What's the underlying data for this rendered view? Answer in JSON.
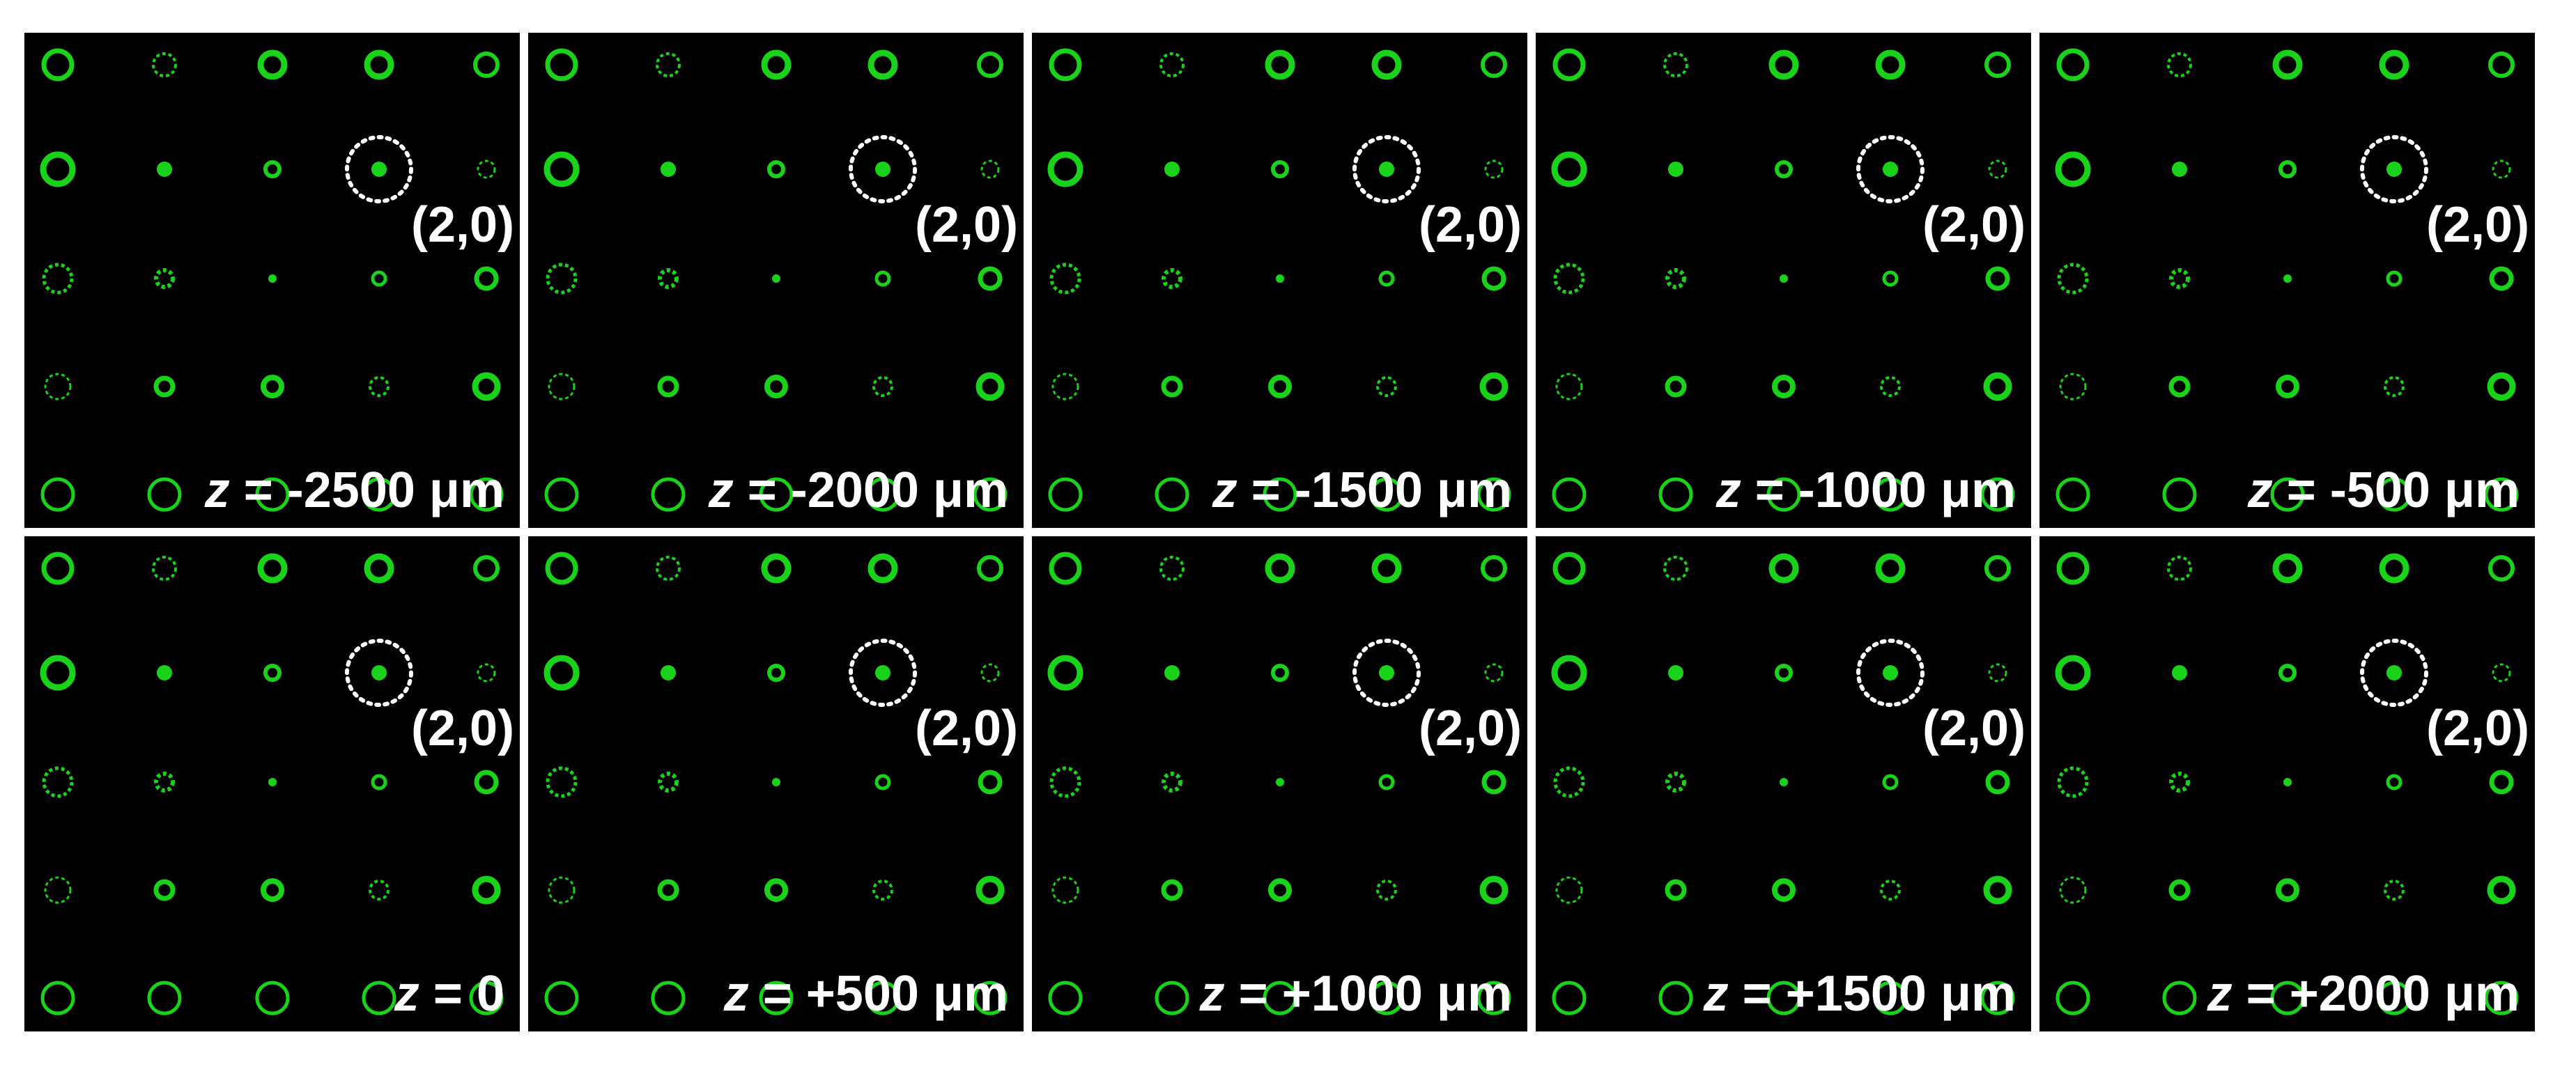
{
  "colors": {
    "spot": "#19d219",
    "background": "#000000",
    "marker": "#ffffff"
  },
  "grid": {
    "rows": 2,
    "cols": 5
  },
  "spots": {
    "rows": 5,
    "cols": 5
  },
  "marked_spot": {
    "label": "(2,0)"
  },
  "panels": [
    {
      "z_symbol": "z",
      "z_text": " = -2500 μm"
    },
    {
      "z_symbol": "z",
      "z_text": " = -2000 μm"
    },
    {
      "z_symbol": "z",
      "z_text": " = -1500 μm"
    },
    {
      "z_symbol": "z",
      "z_text": " = -1000 μm"
    },
    {
      "z_symbol": "z",
      "z_text": " = -500 μm"
    },
    {
      "z_symbol": "z",
      "z_text": " = 0"
    },
    {
      "z_symbol": "z",
      "z_text": " = +500 μm"
    },
    {
      "z_symbol": "z",
      "z_text": " = +1000 μm"
    },
    {
      "z_symbol": "z",
      "z_text": " = +1500 μm"
    },
    {
      "z_symbol": "z",
      "z_text": " = +2000 μm"
    }
  ]
}
